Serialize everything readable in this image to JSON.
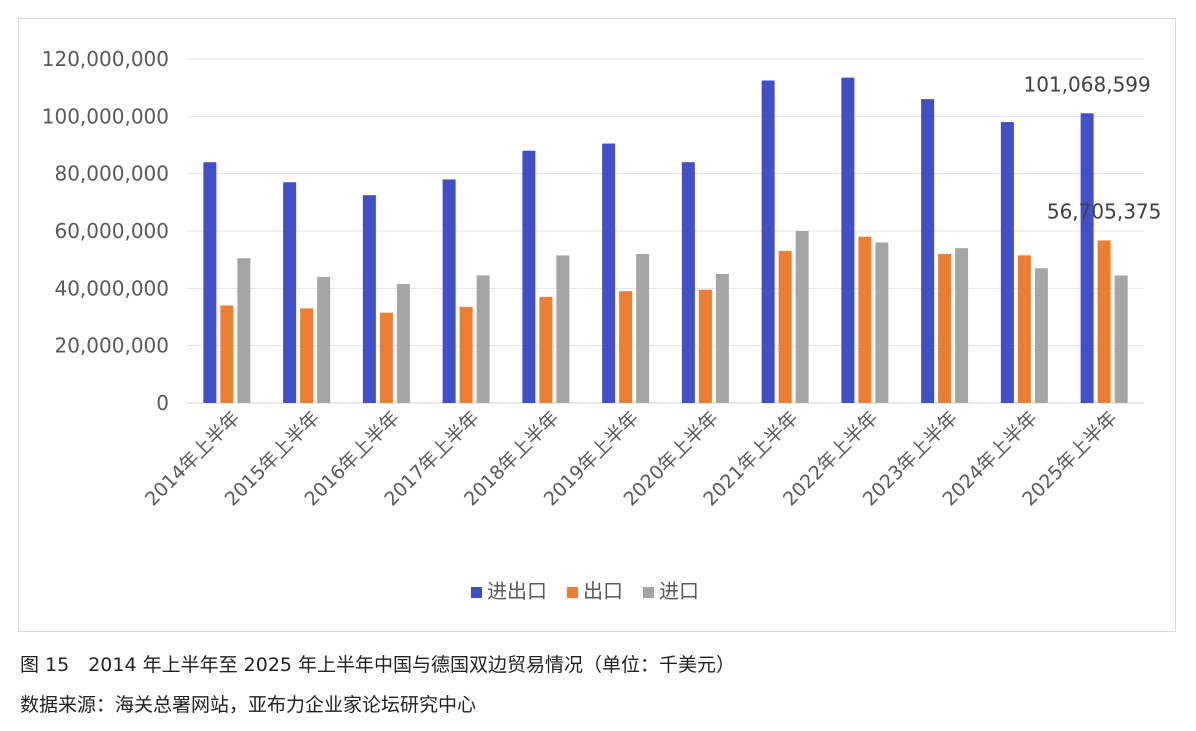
{
  "chart_data": {
    "type": "bar",
    "categories": [
      "2014年上半年",
      "2015年上半年",
      "2016年上半年",
      "2017年上半年",
      "2018年上半年",
      "2019年上半年",
      "2020年上半年",
      "2021年上半年",
      "2022年上半年",
      "2023年上半年",
      "2024年上半年",
      "2025年上半年"
    ],
    "series": [
      {
        "name": "进出口",
        "color": "#4150c6",
        "values": [
          84000000,
          77000000,
          72500000,
          78000000,
          88000000,
          90500000,
          84000000,
          112500000,
          113500000,
          106000000,
          98000000,
          101068599
        ]
      },
      {
        "name": "出口",
        "color": "#ed7d31",
        "values": [
          34000000,
          33000000,
          31500000,
          33500000,
          37000000,
          39000000,
          39500000,
          53000000,
          58000000,
          52000000,
          51500000,
          56705375
        ]
      },
      {
        "name": "进口",
        "color": "#a5a5a5",
        "values": [
          50500000,
          44000000,
          41500000,
          44500000,
          51500000,
          52000000,
          45000000,
          60000000,
          56000000,
          54000000,
          47000000,
          44500000
        ]
      }
    ],
    "yticks": [
      "0",
      "20,000,000",
      "40,000,000",
      "60,000,000",
      "80,000,000",
      "100,000,000",
      "120,000,000"
    ],
    "ylim": [
      0,
      120000000
    ],
    "grid": true,
    "legend_position": "bottom",
    "annotations": [
      {
        "text": "101,068,599",
        "series": 0,
        "index": 11
      },
      {
        "text": "56,705,375",
        "series": 1,
        "index": 11
      }
    ]
  },
  "caption": {
    "title": "图 15　2014 年上半年至 2025 年上半年中国与德国双边贸易情况（单位：千美元）",
    "source": "数据来源：海关总署网站，亚布力企业家论坛研究中心"
  }
}
